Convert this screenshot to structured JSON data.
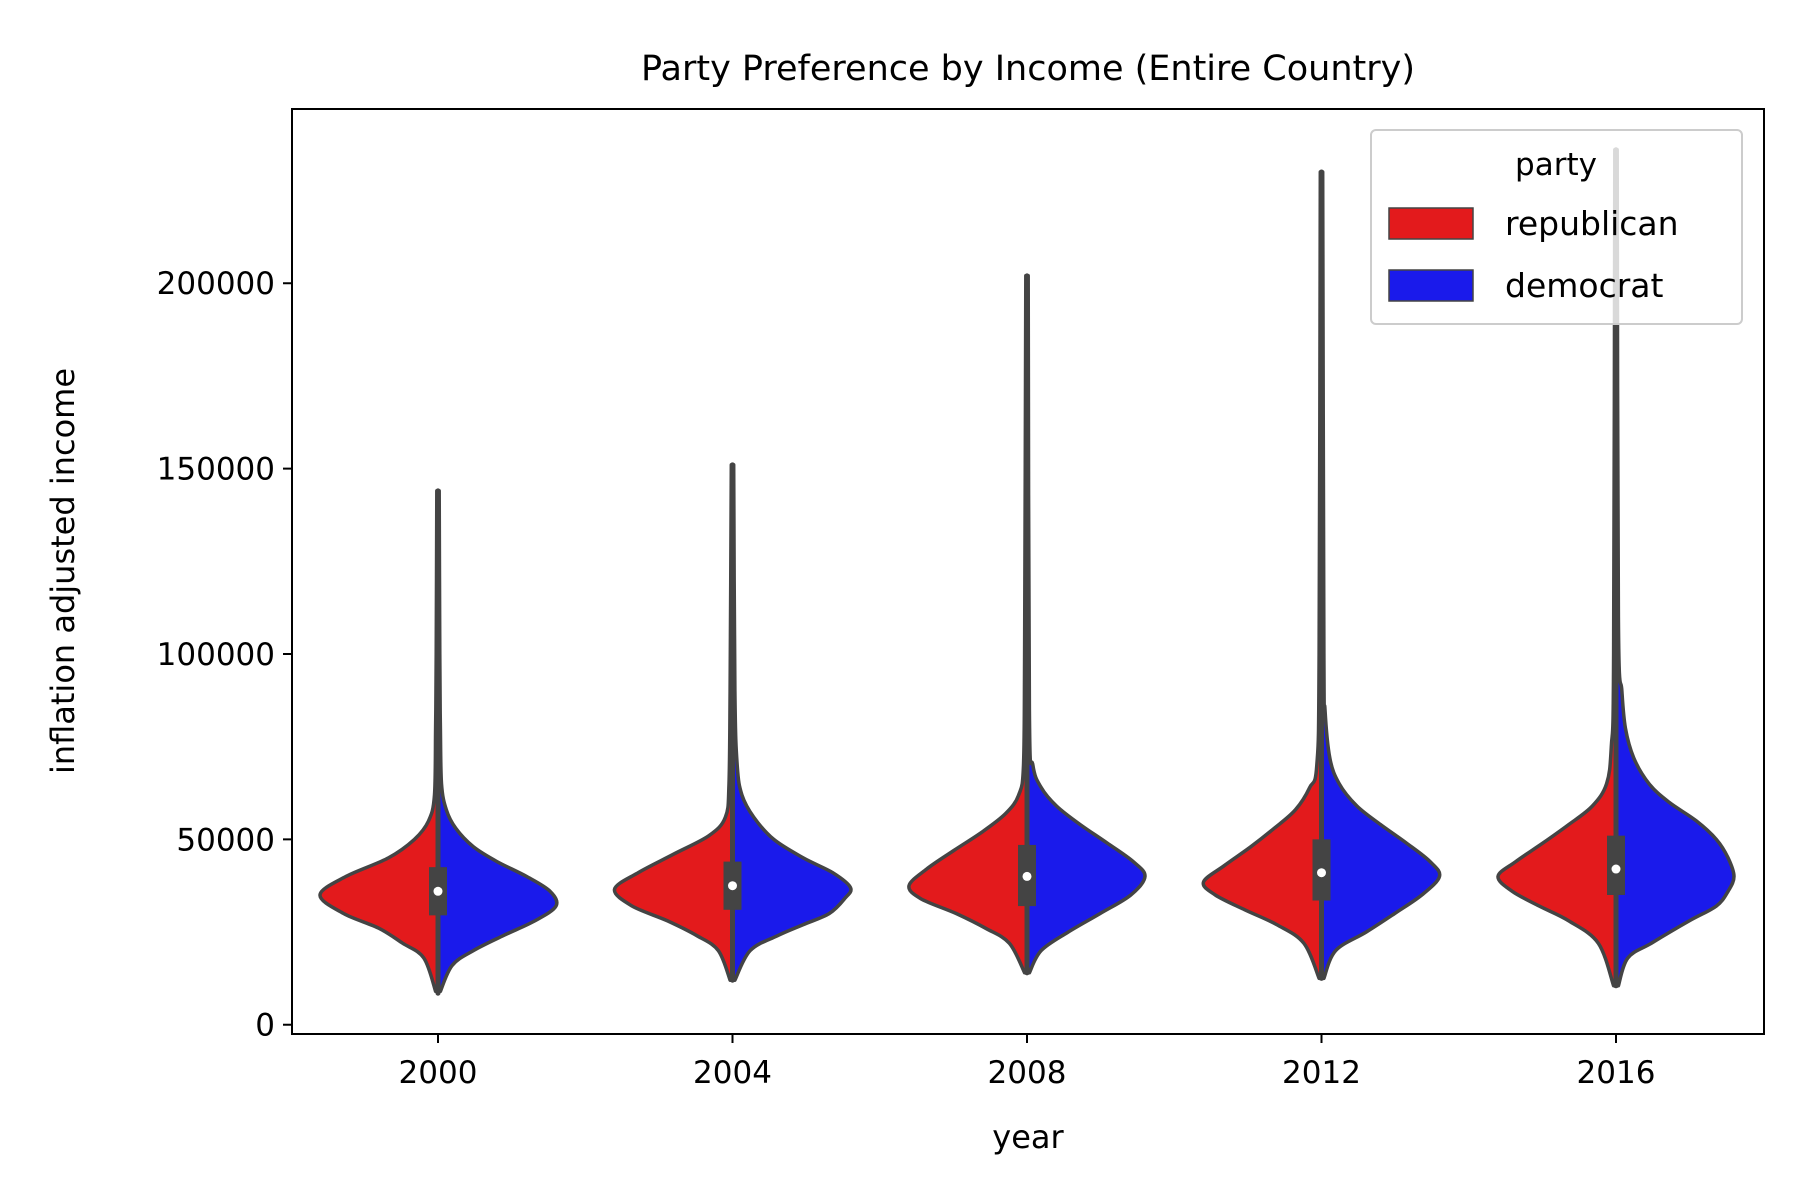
{
  "chart_data": {
    "type": "violin",
    "title": "Party Preference by Income (Entire Country)",
    "xlabel": "year",
    "ylabel": "inflation adjusted income",
    "categories": [
      "2000",
      "2004",
      "2008",
      "2012",
      "2016"
    ],
    "yticks": [
      "0",
      "50000",
      "100000",
      "150000",
      "200000"
    ],
    "ylim": [
      -2500,
      247000
    ],
    "split": true,
    "grid": false,
    "legend": {
      "title": "party",
      "placement": "top-right",
      "entries": [
        {
          "label": "republican",
          "color": "#e31a1c"
        },
        {
          "label": "democrat",
          "color": "#1a1aeb"
        }
      ]
    },
    "series": [
      {
        "name": "republican",
        "color": "#e31a1c",
        "distributions": [
          {
            "min": 8500,
            "max": 144000,
            "q1": 29500,
            "median": 36000,
            "q3": 42500,
            "profile": [
              [
                9000,
                0.02
              ],
              [
                18000,
                0.12
              ],
              [
                22000,
                0.3
              ],
              [
                26000,
                0.5
              ],
              [
                30000,
                0.8
              ],
              [
                35000,
                1.0
              ],
              [
                40000,
                0.78
              ],
              [
                45000,
                0.42
              ],
              [
                50000,
                0.2
              ],
              [
                55000,
                0.08
              ],
              [
                62000,
                0.03
              ],
              [
                80000,
                0.02
              ],
              [
                100000,
                0.015
              ],
              [
                144000,
                0.01
              ]
            ]
          },
          {
            "min": 12000,
            "max": 151000,
            "q1": 31000,
            "median": 37500,
            "q3": 44000,
            "profile": [
              [
                12000,
                0.02
              ],
              [
                20000,
                0.12
              ],
              [
                24000,
                0.3
              ],
              [
                28000,
                0.55
              ],
              [
                32000,
                0.85
              ],
              [
                36500,
                1.0
              ],
              [
                41000,
                0.8
              ],
              [
                46000,
                0.5
              ],
              [
                51000,
                0.2
              ],
              [
                56000,
                0.06
              ],
              [
                65000,
                0.03
              ],
              [
                90000,
                0.02
              ],
              [
                151000,
                0.01
              ]
            ]
          },
          {
            "min": 14000,
            "max": 202000,
            "q1": 32000,
            "median": 40000,
            "q3": 48500,
            "profile": [
              [
                14000,
                0.02
              ],
              [
                22000,
                0.15
              ],
              [
                26000,
                0.35
              ],
              [
                30000,
                0.6
              ],
              [
                34000,
                0.9
              ],
              [
                37500,
                1.0
              ],
              [
                42000,
                0.85
              ],
              [
                47000,
                0.62
              ],
              [
                52000,
                0.38
              ],
              [
                57000,
                0.18
              ],
              [
                62000,
                0.07
              ],
              [
                70000,
                0.03
              ],
              [
                100000,
                0.02
              ],
              [
                202000,
                0.01
              ]
            ]
          },
          {
            "min": 12500,
            "max": 230000,
            "q1": 33500,
            "median": 41000,
            "q3": 50000,
            "profile": [
              [
                12500,
                0.02
              ],
              [
                22000,
                0.15
              ],
              [
                27000,
                0.38
              ],
              [
                31000,
                0.65
              ],
              [
                35000,
                0.9
              ],
              [
                38500,
                1.0
              ],
              [
                43000,
                0.82
              ],
              [
                48000,
                0.6
              ],
              [
                53000,
                0.4
              ],
              [
                58000,
                0.22
              ],
              [
                64000,
                0.1
              ],
              [
                70000,
                0.04
              ],
              [
                100000,
                0.02
              ],
              [
                230000,
                0.01
              ]
            ]
          },
          {
            "min": 10500,
            "max": 236000,
            "q1": 35000,
            "median": 42000,
            "q3": 51000,
            "profile": [
              [
                10500,
                0.02
              ],
              [
                22000,
                0.15
              ],
              [
                28000,
                0.4
              ],
              [
                32000,
                0.65
              ],
              [
                36000,
                0.88
              ],
              [
                40000,
                1.0
              ],
              [
                44000,
                0.85
              ],
              [
                49000,
                0.62
              ],
              [
                54000,
                0.4
              ],
              [
                59000,
                0.2
              ],
              [
                65000,
                0.08
              ],
              [
                75000,
                0.04
              ],
              [
                100000,
                0.02
              ],
              [
                236000,
                0.01
              ]
            ]
          }
        ]
      },
      {
        "name": "democrat",
        "color": "#1a1aeb",
        "distributions": [
          {
            "min": 8500,
            "max": 144000,
            "q1": 29500,
            "median": 36000,
            "q3": 42500,
            "profile": [
              [
                9000,
                0.02
              ],
              [
                16000,
                0.12
              ],
              [
                20000,
                0.3
              ],
              [
                24000,
                0.55
              ],
              [
                28000,
                0.82
              ],
              [
                32000,
                1.0
              ],
              [
                36000,
                0.95
              ],
              [
                40000,
                0.75
              ],
              [
                44000,
                0.5
              ],
              [
                48000,
                0.3
              ],
              [
                53000,
                0.15
              ],
              [
                58000,
                0.07
              ],
              [
                65000,
                0.03
              ],
              [
                80000,
                0.02
              ],
              [
                100000,
                0.015
              ],
              [
                144000,
                0.01
              ]
            ]
          },
          {
            "min": 12000,
            "max": 151000,
            "q1": 31000,
            "median": 37500,
            "q3": 44000,
            "profile": [
              [
                12000,
                0.02
              ],
              [
                20000,
                0.15
              ],
              [
                24000,
                0.38
              ],
              [
                27000,
                0.6
              ],
              [
                30000,
                0.82
              ],
              [
                34000,
                0.95
              ],
              [
                37000,
                1.0
              ],
              [
                41000,
                0.85
              ],
              [
                45000,
                0.6
              ],
              [
                50000,
                0.35
              ],
              [
                56000,
                0.18
              ],
              [
                62000,
                0.08
              ],
              [
                70000,
                0.04
              ],
              [
                90000,
                0.02
              ],
              [
                151000,
                0.01
              ]
            ]
          },
          {
            "min": 14000,
            "max": 202000,
            "q1": 32000,
            "median": 40000,
            "q3": 48500,
            "profile": [
              [
                14000,
                0.02
              ],
              [
                20000,
                0.12
              ],
              [
                25000,
                0.35
              ],
              [
                30000,
                0.62
              ],
              [
                35000,
                0.88
              ],
              [
                40000,
                1.0
              ],
              [
                44000,
                0.9
              ],
              [
                49000,
                0.68
              ],
              [
                54000,
                0.45
              ],
              [
                59000,
                0.25
              ],
              [
                64000,
                0.12
              ],
              [
                70000,
                0.05
              ],
              [
                85000,
                0.02
              ],
              [
                202000,
                0.01
              ]
            ]
          },
          {
            "min": 12500,
            "max": 230000,
            "q1": 33500,
            "median": 41000,
            "q3": 50000,
            "profile": [
              [
                12500,
                0.02
              ],
              [
                20000,
                0.12
              ],
              [
                25000,
                0.38
              ],
              [
                30000,
                0.62
              ],
              [
                35000,
                0.85
              ],
              [
                40000,
                1.0
              ],
              [
                44000,
                0.92
              ],
              [
                49000,
                0.72
              ],
              [
                54000,
                0.5
              ],
              [
                59000,
                0.3
              ],
              [
                65000,
                0.15
              ],
              [
                72000,
                0.07
              ],
              [
                85000,
                0.03
              ],
              [
                100000,
                0.02
              ],
              [
                230000,
                0.01
              ]
            ]
          },
          {
            "min": 10500,
            "max": 236000,
            "q1": 35000,
            "median": 42000,
            "q3": 51000,
            "profile": [
              [
                10500,
                0.02
              ],
              [
                18000,
                0.1
              ],
              [
                22000,
                0.3
              ],
              [
                28000,
                0.62
              ],
              [
                32000,
                0.85
              ],
              [
                36000,
                0.95
              ],
              [
                40000,
                1.0
              ],
              [
                45000,
                0.95
              ],
              [
                50000,
                0.85
              ],
              [
                55000,
                0.68
              ],
              [
                60000,
                0.45
              ],
              [
                65000,
                0.28
              ],
              [
                72000,
                0.15
              ],
              [
                80000,
                0.08
              ],
              [
                90000,
                0.05
              ],
              [
                110000,
                0.02
              ],
              [
                236000,
                0.01
              ]
            ]
          }
        ]
      }
    ]
  }
}
